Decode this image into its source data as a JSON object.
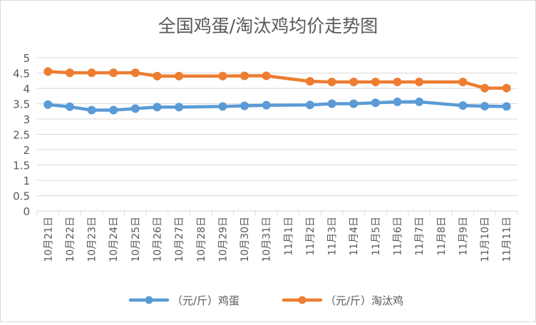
{
  "chart_data": {
    "type": "line",
    "title": "全国鸡蛋/淘汰鸡均价走势图",
    "categories": [
      "10月21日",
      "10月22日",
      "10月23日",
      "10月24日",
      "10月25日",
      "10月26日",
      "10月27日",
      "10月28日",
      "10月29日",
      "10月30日",
      "10月31日",
      "11月1日",
      "11月2日",
      "11月3日",
      "11月4日",
      "11月5日",
      "11月6日",
      "11月7日",
      "11月8日",
      "11月9日",
      "11月10日",
      "11月11日"
    ],
    "y_ticks": [
      "0",
      "0.5",
      "1",
      "1.5",
      "2",
      "2.5",
      "3",
      "3.5",
      "4",
      "4.5",
      "5"
    ],
    "ylim": [
      0,
      5
    ],
    "grid": true,
    "legend_position": "bottom",
    "series": [
      {
        "name": "（元/斤）鸡蛋",
        "color": "#5B9BD5",
        "values": [
          3.47,
          3.4,
          3.29,
          3.29,
          3.34,
          3.39,
          3.39,
          null,
          3.41,
          3.43,
          3.45,
          null,
          3.46,
          3.5,
          3.5,
          3.53,
          3.56,
          3.56,
          null,
          3.44,
          3.42,
          3.41
        ]
      },
      {
        "name": "（元/斤）淘汰鸡",
        "color": "#ED7D31",
        "values": [
          4.55,
          4.51,
          4.51,
          4.51,
          4.51,
          4.4,
          4.4,
          null,
          4.4,
          4.41,
          4.41,
          null,
          4.23,
          4.21,
          4.21,
          4.21,
          4.21,
          4.21,
          null,
          4.21,
          4.01,
          4.01
        ]
      }
    ]
  }
}
